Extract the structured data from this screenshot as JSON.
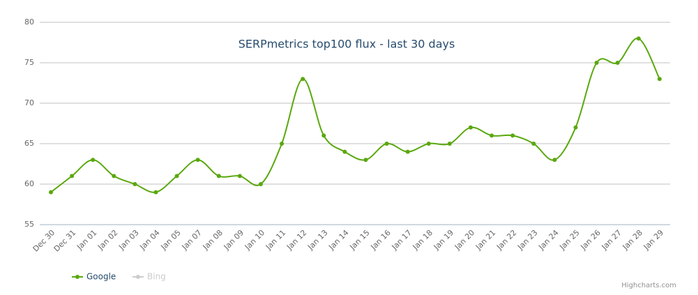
{
  "chart_data": {
    "type": "line",
    "title": "SERPmetrics top100 flux - last 30 days",
    "categories": [
      "Dec 30",
      "Dec 31",
      "Jan 01",
      "Jan 02",
      "Jan 03",
      "Jan 04",
      "Jan 05",
      "Jan 07",
      "Jan 08",
      "Jan 09",
      "Jan 10",
      "Jan 11",
      "Jan 12",
      "Jan 13",
      "Jan 14",
      "Jan 15",
      "Jan 16",
      "Jan 17",
      "Jan 18",
      "Jan 19",
      "Jan 20",
      "Jan 21",
      "Jan 22",
      "Jan 23",
      "Jan 24",
      "Jan 25",
      "Jan 26",
      "Jan 27",
      "Jan 28",
      "Jan 29"
    ],
    "series": [
      {
        "name": "Google",
        "color": "#5aa80f",
        "values": [
          59,
          61,
          63,
          61,
          60,
          59,
          61,
          63,
          61,
          61,
          60,
          65,
          73,
          66,
          64,
          63,
          65,
          64,
          65,
          65,
          67,
          66,
          66,
          65,
          63,
          67,
          75,
          75,
          78,
          73
        ]
      },
      {
        "name": "Bing",
        "color": "#cccccc",
        "hidden": true,
        "values": [
          null,
          null,
          null,
          null,
          null,
          null,
          null,
          null,
          null,
          null,
          null,
          null,
          null,
          null,
          null,
          null,
          null,
          null,
          null,
          null,
          null,
          null,
          null,
          null,
          null,
          null,
          null,
          null,
          null,
          null
        ]
      }
    ],
    "ylim": [
      55,
      80
    ],
    "yticks": [
      55,
      60,
      65,
      70,
      75,
      80
    ],
    "grid": true,
    "legend": "bottom-left",
    "credits": "Highcharts.com"
  }
}
